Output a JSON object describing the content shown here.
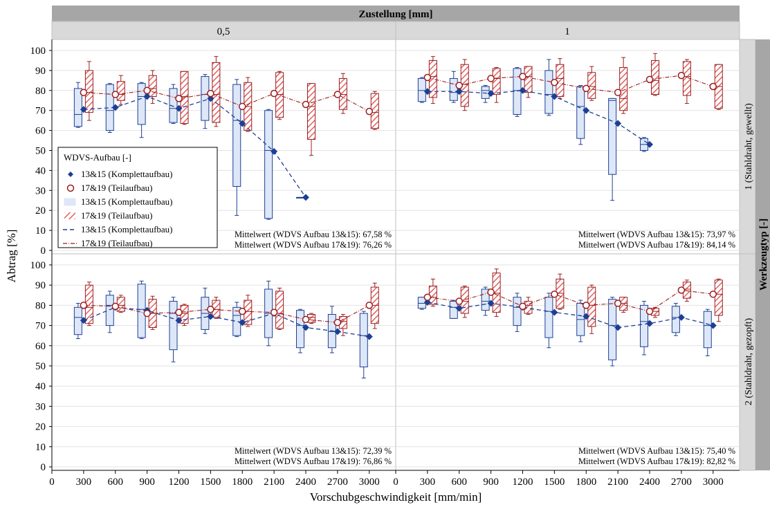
{
  "chart_data": {
    "type": "box",
    "title": "Zustellung [mm]",
    "xlabel": "Vorschubgeschwindigkeit [mm/min]",
    "ylabel": "Abtrag [%]",
    "row_header": "Werkzeugtyp [-]",
    "col_labels": [
      "0,5",
      "1"
    ],
    "row_labels": [
      "1 (Stahldraht, gewellt)",
      "2 (Stahldraht, gezopft)"
    ],
    "x_ticks": [
      0,
      300,
      600,
      900,
      1200,
      1500,
      1800,
      2100,
      2400,
      2700,
      3000
    ],
    "xlim": [
      0,
      3250
    ],
    "ylim": [
      0,
      100
    ],
    "y_ticks": [
      0,
      10,
      20,
      30,
      40,
      50,
      60,
      70,
      80,
      90,
      100
    ],
    "legend": {
      "title": "WDVS-Aufbau [-]",
      "entries": [
        "13&15 (Komplettaufbau)",
        "17&19 (Teilaufbau)",
        "13&15 (Komplettaufbau)",
        "17&19 (Teilaufbau)",
        "13&15 (Komplettaufbau)",
        "17&19 (Teilaufbau)"
      ]
    },
    "colors": {
      "series_13_15": "#1c3f94",
      "series_17_19": "#9b1c1c",
      "box_fill_13_15": "#dde7f7",
      "hatch_17_19": "#e06060",
      "strip": "#d9d9d9",
      "header": "#a6a6a6"
    },
    "panels": [
      {
        "row": 0,
        "col": 0,
        "mean_13_15": "Mittelwert (WDVS Aufbau 13&15): 67,58 %",
        "mean_17_19": "Mittelwert (WDVS Aufbau 17&19): 76,26 %",
        "series_13_15": {
          "x": [
            300,
            600,
            900,
            1200,
            1500,
            1800,
            2100,
            2400
          ],
          "mean": [
            70.5,
            71.5,
            77,
            71,
            76,
            63.5,
            49.5,
            26.5
          ],
          "boxes": [
            {
              "x": 300,
              "min": 61.5,
              "q1": 62,
              "median": 68,
              "q3": 81,
              "max": 84
            },
            {
              "x": 600,
              "min": 59,
              "q1": 60,
              "median": 70,
              "q3": 83,
              "max": 83.5
            },
            {
              "x": 900,
              "min": 56.5,
              "q1": 63,
              "median": 77,
              "q3": 83.5,
              "max": 84
            },
            {
              "x": 1200,
              "min": 63.5,
              "q1": 64,
              "median": 71,
              "q3": 81,
              "max": 83
            },
            {
              "x": 1500,
              "min": 61,
              "q1": 65,
              "median": 78,
              "q3": 87,
              "max": 88
            },
            {
              "x": 1800,
              "min": 17.5,
              "q1": 32,
              "median": 65,
              "q3": 83,
              "max": 85.5
            },
            {
              "x": 2100,
              "min": 15.5,
              "q1": 16,
              "median": 50,
              "q3": 70,
              "max": 70.5
            },
            {
              "x": 2400,
              "min": 26.5,
              "q1": 26.5,
              "median": 26.5,
              "q3": 26.5,
              "max": 26.5
            }
          ]
        },
        "series_17_19": {
          "x": [
            300,
            600,
            900,
            1200,
            1500,
            1800,
            2100,
            2400,
            2700,
            3000
          ],
          "mean": [
            79,
            78,
            80,
            76,
            78.5,
            72,
            78.5,
            73,
            78,
            69.5
          ],
          "boxes": [
            {
              "x": 300,
              "min": 65,
              "q1": 69,
              "median": 79,
              "q3": 90,
              "max": 94.5
            },
            {
              "x": 600,
              "min": 73,
              "q1": 75,
              "median": 78,
              "q3": 84.5,
              "max": 87.5
            },
            {
              "x": 900,
              "min": 73.5,
              "q1": 77,
              "median": 81,
              "q3": 87.5,
              "max": 90
            },
            {
              "x": 1200,
              "min": 63,
              "q1": 63.5,
              "median": 77,
              "q3": 89.5,
              "max": 89.5
            },
            {
              "x": 1500,
              "min": 62,
              "q1": 64,
              "median": 78,
              "q3": 94,
              "max": 97
            },
            {
              "x": 1800,
              "min": 59.5,
              "q1": 60,
              "median": 72,
              "q3": 84,
              "max": 86.5
            },
            {
              "x": 2100,
              "min": 65.5,
              "q1": 66.5,
              "median": 78,
              "q3": 89,
              "max": 89.5
            },
            {
              "x": 2400,
              "min": 47.5,
              "q1": 55.5,
              "median": 72,
              "q3": 83.5,
              "max": 83.5
            },
            {
              "x": 2700,
              "min": 68.5,
              "q1": 70.5,
              "median": 78,
              "q3": 86,
              "max": 88.5
            },
            {
              "x": 3000,
              "min": 60.5,
              "q1": 61,
              "median": 69,
              "q3": 78.5,
              "max": 79.5
            }
          ]
        }
      },
      {
        "row": 0,
        "col": 1,
        "mean_13_15": "Mittelwert (WDVS Aufbau 13&15): 73,97 %",
        "mean_17_19": "Mittelwert (WDVS Aufbau 17&19): 84,14 %",
        "series_13_15": {
          "x": [
            300,
            600,
            900,
            1200,
            1500,
            1800,
            2100,
            2400
          ],
          "mean": [
            79.5,
            79.5,
            78.5,
            80,
            77,
            70,
            63.5,
            53
          ],
          "boxes": [
            {
              "x": 300,
              "min": 74,
              "q1": 74.5,
              "median": 80,
              "q3": 86,
              "max": 86.5
            },
            {
              "x": 600,
              "min": 74,
              "q1": 75,
              "median": 79,
              "q3": 86,
              "max": 89.5
            },
            {
              "x": 900,
              "min": 74,
              "q1": 76,
              "median": 80,
              "q3": 82,
              "max": 82.5
            },
            {
              "x": 1200,
              "min": 67,
              "q1": 68,
              "median": 80,
              "q3": 91,
              "max": 91.5
            },
            {
              "x": 1500,
              "min": 67.5,
              "q1": 68.5,
              "median": 78,
              "q3": 90,
              "max": 95.5
            },
            {
              "x": 1800,
              "min": 53,
              "q1": 56,
              "median": 72,
              "q3": 82,
              "max": 82.5
            },
            {
              "x": 2100,
              "min": 25,
              "q1": 38,
              "median": 75,
              "q3": 76,
              "max": 76
            },
            {
              "x": 2400,
              "min": 49.5,
              "q1": 50,
              "median": 53,
              "q3": 56,
              "max": 56.5
            }
          ]
        },
        "series_17_19": {
          "x": [
            300,
            600,
            900,
            1200,
            1500,
            1800,
            2100,
            2400,
            2700,
            3000
          ],
          "mean": [
            86.5,
            82.5,
            86,
            87,
            84,
            81,
            79,
            85.5,
            87.5,
            82
          ],
          "boxes": [
            {
              "x": 300,
              "min": 73.5,
              "q1": 76.5,
              "median": 87,
              "q3": 95,
              "max": 97
            },
            {
              "x": 600,
              "min": 70,
              "q1": 72,
              "median": 83,
              "q3": 93,
              "max": 95.5
            },
            {
              "x": 900,
              "min": 74,
              "q1": 78,
              "median": 86,
              "q3": 91,
              "max": 91.5
            },
            {
              "x": 1200,
              "min": 76.5,
              "q1": 79,
              "median": 87,
              "q3": 92,
              "max": 92
            },
            {
              "x": 1500,
              "min": 76,
              "q1": 77,
              "median": 86,
              "q3": 93,
              "max": 96
            },
            {
              "x": 1800,
              "min": 75,
              "q1": 76,
              "median": 82,
              "q3": 89,
              "max": 92
            },
            {
              "x": 2100,
              "min": 68.5,
              "q1": 70,
              "median": 76,
              "q3": 91.5,
              "max": 96.5
            },
            {
              "x": 2400,
              "min": 77.5,
              "q1": 78,
              "median": 85,
              "q3": 95,
              "max": 98.5
            },
            {
              "x": 2700,
              "min": 73.5,
              "q1": 77.5,
              "median": 87,
              "q3": 94.5,
              "max": 95.5
            },
            {
              "x": 3000,
              "min": 70.5,
              "q1": 71,
              "median": 82,
              "q3": 93,
              "max": 93
            }
          ]
        }
      },
      {
        "row": 1,
        "col": 0,
        "mean_13_15": "Mittelwert (WDVS Aufbau 13&15): 72,39 %",
        "mean_17_19": "Mittelwert (WDVS Aufbau 17&19): 76,86 %",
        "series_13_15": {
          "x": [
            300,
            600,
            900,
            1200,
            1500,
            1800,
            2100,
            2400,
            2700,
            3000
          ],
          "mean": [
            72.5,
            79,
            77.5,
            72.5,
            74.5,
            71.5,
            76,
            69,
            67,
            64.5
          ],
          "boxes": [
            {
              "x": 300,
              "min": 63.5,
              "q1": 65.5,
              "median": 74,
              "q3": 79,
              "max": 81
            },
            {
              "x": 600,
              "min": 66.5,
              "q1": 70,
              "median": 80,
              "q3": 85,
              "max": 87
            },
            {
              "x": 900,
              "min": 63.5,
              "q1": 64,
              "median": 78,
              "q3": 90.5,
              "max": 92
            },
            {
              "x": 1200,
              "min": 52,
              "q1": 58,
              "median": 76,
              "q3": 82,
              "max": 84
            },
            {
              "x": 1500,
              "min": 66,
              "q1": 68,
              "median": 76,
              "q3": 84,
              "max": 88.5
            },
            {
              "x": 1800,
              "min": 64.5,
              "q1": 65,
              "median": 75,
              "q3": 79,
              "max": 81.5
            },
            {
              "x": 2100,
              "min": 60,
              "q1": 64,
              "median": 76,
              "q3": 88,
              "max": 92
            },
            {
              "x": 2400,
              "min": 56.5,
              "q1": 59,
              "median": 70,
              "q3": 77.5,
              "max": 78
            },
            {
              "x": 2700,
              "min": 56.5,
              "q1": 59,
              "median": 67,
              "q3": 75.5,
              "max": 79.5
            },
            {
              "x": 3000,
              "min": 44,
              "q1": 49.5,
              "median": 65,
              "q3": 76,
              "max": 77
            }
          ]
        },
        "series_17_19": {
          "x": [
            300,
            600,
            900,
            1200,
            1500,
            1800,
            2100,
            2400,
            2700,
            3000
          ],
          "mean": [
            80,
            79.5,
            76,
            76.5,
            78,
            77,
            76.5,
            73,
            71.5,
            80
          ],
          "boxes": [
            {
              "x": 300,
              "min": 70,
              "q1": 71,
              "median": 79,
              "q3": 90,
              "max": 91.5
            },
            {
              "x": 600,
              "min": 76.5,
              "q1": 77,
              "median": 80,
              "q3": 84,
              "max": 85
            },
            {
              "x": 900,
              "min": 68,
              "q1": 69,
              "median": 76,
              "q3": 83,
              "max": 84.5
            },
            {
              "x": 1200,
              "min": 70,
              "q1": 71,
              "median": 76,
              "q3": 80,
              "max": 80.5
            },
            {
              "x": 1500,
              "min": 73.5,
              "q1": 74,
              "median": 78,
              "q3": 82.5,
              "max": 84
            },
            {
              "x": 1800,
              "min": 69.5,
              "q1": 70.5,
              "median": 77,
              "q3": 82.5,
              "max": 85
            },
            {
              "x": 2100,
              "min": 68,
              "q1": 68.5,
              "median": 76,
              "q3": 87,
              "max": 88.5
            },
            {
              "x": 2400,
              "min": 71,
              "q1": 71.5,
              "median": 74,
              "q3": 75.5,
              "max": 76
            },
            {
              "x": 2700,
              "min": 65,
              "q1": 68.5,
              "median": 72,
              "q3": 74.5,
              "max": 75.5
            },
            {
              "x": 3000,
              "min": 68.5,
              "q1": 71,
              "median": 80,
              "q3": 89,
              "max": 91
            }
          ]
        }
      },
      {
        "row": 1,
        "col": 1,
        "mean_13_15": "Mittelwert (WDVS Aufbau 13&15): 75,40 %",
        "mean_17_19": "Mittelwert (WDVS Aufbau 17&19): 82,82 %",
        "series_13_15": {
          "x": [
            300,
            600,
            900,
            1200,
            1500,
            1800,
            2100,
            2400,
            2700,
            3000
          ],
          "mean": [
            81.5,
            78.5,
            81,
            79,
            76.5,
            74.5,
            69,
            71,
            74,
            70
          ],
          "boxes": [
            {
              "x": 300,
              "min": 78,
              "q1": 78.5,
              "median": 81,
              "q3": 84,
              "max": 84
            },
            {
              "x": 600,
              "min": 73.5,
              "q1": 73.5,
              "median": 79,
              "q3": 82,
              "max": 82.5
            },
            {
              "x": 900,
              "min": 75,
              "q1": 77.5,
              "median": 82,
              "q3": 88,
              "max": 89
            },
            {
              "x": 1200,
              "min": 67,
              "q1": 70,
              "median": 79,
              "q3": 84,
              "max": 86
            },
            {
              "x": 1500,
              "min": 59,
              "q1": 64,
              "median": 77,
              "q3": 84,
              "max": 86
            },
            {
              "x": 1800,
              "min": 62,
              "q1": 65,
              "median": 73,
              "q3": 81,
              "max": 82.5
            },
            {
              "x": 2100,
              "min": 50,
              "q1": 53,
              "median": 70,
              "q3": 83,
              "max": 84
            },
            {
              "x": 2400,
              "min": 55.5,
              "q1": 59.5,
              "median": 72,
              "q3": 80,
              "max": 82
            },
            {
              "x": 2700,
              "min": 65,
              "q1": 66.5,
              "median": 74,
              "q3": 79.5,
              "max": 81
            },
            {
              "x": 3000,
              "min": 55,
              "q1": 59,
              "median": 70,
              "q3": 77,
              "max": 78
            }
          ]
        },
        "series_17_19": {
          "x": [
            300,
            600,
            900,
            1200,
            1500,
            1800,
            2100,
            2400,
            2700,
            3000
          ],
          "mean": [
            84,
            82,
            86.5,
            79.5,
            85.5,
            80,
            81,
            77,
            87.5,
            85.5
          ],
          "boxes": [
            {
              "x": 300,
              "min": 79.5,
              "q1": 80.5,
              "median": 84,
              "q3": 89.5,
              "max": 93
            },
            {
              "x": 600,
              "min": 74,
              "q1": 76,
              "median": 82,
              "q3": 89,
              "max": 89.5
            },
            {
              "x": 900,
              "min": 74.5,
              "q1": 76.5,
              "median": 86,
              "q3": 96,
              "max": 98
            },
            {
              "x": 1200,
              "min": 75.5,
              "q1": 76,
              "median": 80,
              "q3": 82,
              "max": 84
            },
            {
              "x": 1500,
              "min": 78,
              "q1": 78.5,
              "median": 86,
              "q3": 93,
              "max": 95.5
            },
            {
              "x": 1800,
              "min": 66,
              "q1": 69.5,
              "median": 80,
              "q3": 89,
              "max": 90
            },
            {
              "x": 2100,
              "min": 76.5,
              "q1": 77.5,
              "median": 81,
              "q3": 84,
              "max": 84
            },
            {
              "x": 2400,
              "min": 74,
              "q1": 75,
              "median": 77,
              "q3": 78.5,
              "max": 79
            },
            {
              "x": 2700,
              "min": 82,
              "q1": 83.5,
              "median": 88,
              "q3": 91.5,
              "max": 92.5
            },
            {
              "x": 3000,
              "min": 72,
              "q1": 75,
              "median": 85.5,
              "q3": 92.5,
              "max": 93
            }
          ]
        }
      }
    ]
  }
}
